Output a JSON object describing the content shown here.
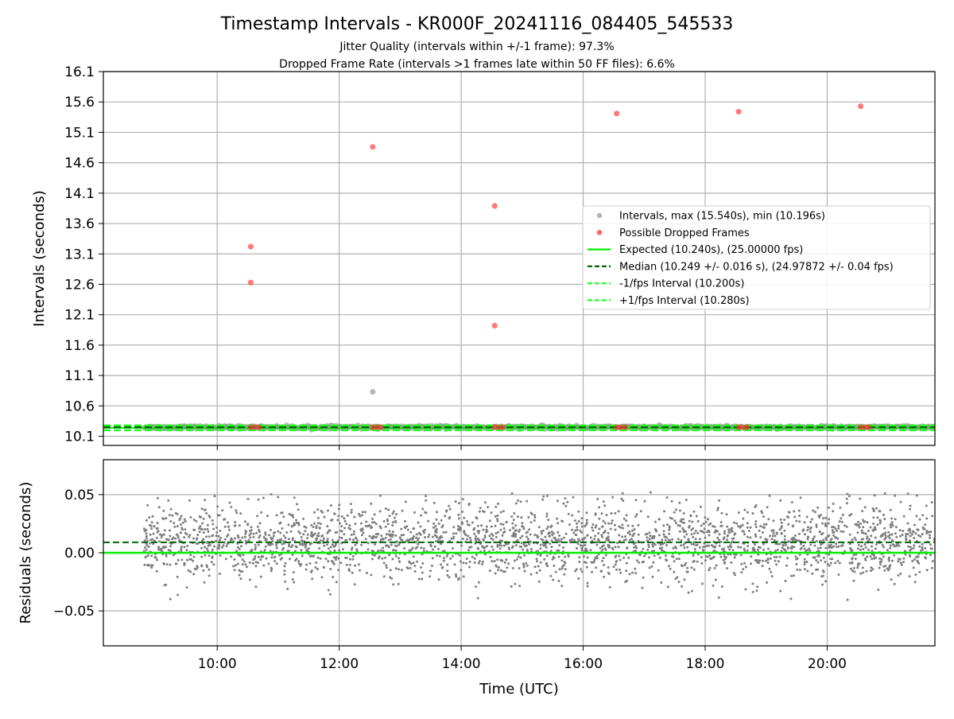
{
  "title": "Timestamp Intervals - KR000F_20241116_084405_545533",
  "subtitle_jitter": "Jitter Quality (intervals within +/-1 frame): 97.3%",
  "subtitle_dropped": "Dropped Frame Rate (intervals >1 frames late within 50 FF files): 6.6%",
  "colors": {
    "interval": "#999999",
    "dropped": "#ff3333",
    "expected": "#00ee00",
    "median": "#006400",
    "bound": "#22ff22",
    "residual": "#7f7f7f"
  },
  "chart_data": [
    {
      "type": "scatter",
      "ylabel": "Intervals (seconds)",
      "xlim": [
        "08:08",
        "21:46"
      ],
      "ylim": [
        9.95,
        16.1
      ],
      "xticks": [
        "10:00",
        "12:00",
        "14:00",
        "16:00",
        "18:00",
        "20:00"
      ],
      "yticks": [
        "10.1",
        "10.6",
        "11.1",
        "11.6",
        "12.1",
        "12.6",
        "13.1",
        "13.6",
        "14.1",
        "14.6",
        "15.1",
        "15.6",
        "16.1"
      ],
      "grid": true,
      "legend": "center-right",
      "series": [
        {
          "name": "Intervals, max (15.540s), min (10.196s)",
          "kind": "scatter",
          "x_range": [
            "08:48",
            "21:46"
          ],
          "y_typical": 10.249,
          "y_spread": 0.016,
          "outliers": [
            {
              "x": "12:33",
              "y": 10.83
            }
          ]
        },
        {
          "name": "Possible Dropped Frames",
          "kind": "scatter",
          "points": [
            {
              "x": "10:33",
              "y": 13.22
            },
            {
              "x": "10:33",
              "y": 12.63
            },
            {
              "x": "12:33",
              "y": 14.86
            },
            {
              "x": "14:33",
              "y": 13.89
            },
            {
              "x": "14:33",
              "y": 11.92
            },
            {
              "x": "16:33",
              "y": 15.41
            },
            {
              "x": "18:33",
              "y": 15.44
            },
            {
              "x": "20:33",
              "y": 15.53
            },
            {
              "x": "10:33",
              "y": 10.25
            },
            {
              "x": "10:37",
              "y": 10.25
            },
            {
              "x": "10:41",
              "y": 10.25
            },
            {
              "x": "12:33",
              "y": 10.25
            },
            {
              "x": "12:37",
              "y": 10.25
            },
            {
              "x": "12:41",
              "y": 10.25
            },
            {
              "x": "14:33",
              "y": 10.25
            },
            {
              "x": "14:37",
              "y": 10.25
            },
            {
              "x": "14:41",
              "y": 10.25
            },
            {
              "x": "16:33",
              "y": 10.25
            },
            {
              "x": "16:37",
              "y": 10.25
            },
            {
              "x": "16:41",
              "y": 10.25
            },
            {
              "x": "18:33",
              "y": 10.25
            },
            {
              "x": "18:37",
              "y": 10.25
            },
            {
              "x": "18:41",
              "y": 10.25
            },
            {
              "x": "20:33",
              "y": 10.25
            },
            {
              "x": "20:37",
              "y": 10.25
            },
            {
              "x": "20:41",
              "y": 10.25
            }
          ]
        },
        {
          "name": "Expected (10.240s), (25.00000 fps)",
          "kind": "hline",
          "y": 10.24,
          "style": "solid"
        },
        {
          "name": "Median (10.249 +/- 0.016 s), (24.97872 +/- 0.04 fps)",
          "kind": "hline",
          "y": 10.249,
          "style": "dashed"
        },
        {
          "name": "-1/fps Interval (10.200s)",
          "kind": "hline",
          "y": 10.2,
          "style": "dashed"
        },
        {
          "name": "+1/fps Interval (10.280s)",
          "kind": "hline",
          "y": 10.28,
          "style": "dashed"
        }
      ]
    },
    {
      "type": "scatter",
      "xlabel": "Time (UTC)",
      "ylabel": "Residuals (seconds)",
      "xlim": [
        "08:08",
        "21:46"
      ],
      "ylim": [
        -0.08,
        0.08
      ],
      "xticks": [
        "10:00",
        "12:00",
        "14:00",
        "16:00",
        "18:00",
        "20:00"
      ],
      "yticks": [
        "0.05",
        "0.00",
        "−0.05"
      ],
      "grid": true,
      "series": [
        {
          "kind": "scatter",
          "x_range": [
            "08:48",
            "21:46"
          ],
          "y_center": 0.009,
          "y_spread": 0.016,
          "y_min": -0.044,
          "y_max": 0.052
        },
        {
          "kind": "hline",
          "y": 0.0,
          "style": "solid"
        },
        {
          "kind": "hline",
          "y": 0.009,
          "style": "dashed"
        }
      ]
    }
  ]
}
